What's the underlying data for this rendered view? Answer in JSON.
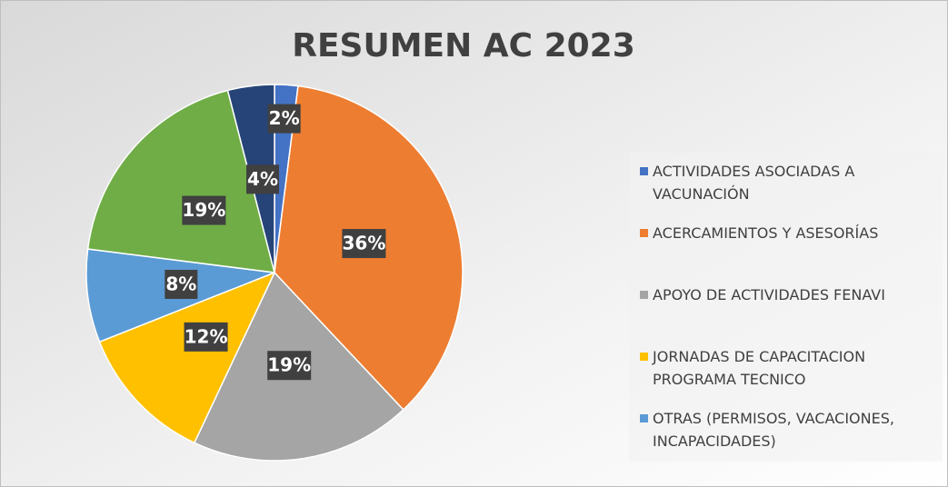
{
  "chart_data": {
    "type": "pie",
    "title": "RESUMEN AC 2023",
    "categories": [
      "ACTIVIDADES ASOCIADAS A VACUNACIÓN",
      "ACERCAMIENTOS Y ASESORÍAS",
      "APOYO DE ACTIVIDADES FENAVI",
      "JORNADAS DE CAPACITACION PROGRAMA TECNICO",
      "OTRAS (PERMISOS, VACACIONES, INCAPACIDADES)",
      null,
      null
    ],
    "values": [
      2,
      36,
      19,
      12,
      8,
      19,
      4
    ],
    "value_labels": [
      "2%",
      "36%",
      "19%",
      "12%",
      "8%",
      "19%",
      "4%"
    ],
    "colors": [
      "#4472c4",
      "#ed7d31",
      "#a5a5a5",
      "#ffc000",
      "#5b9bd5",
      "#70ad47",
      "#264478"
    ],
    "legend": "right"
  }
}
